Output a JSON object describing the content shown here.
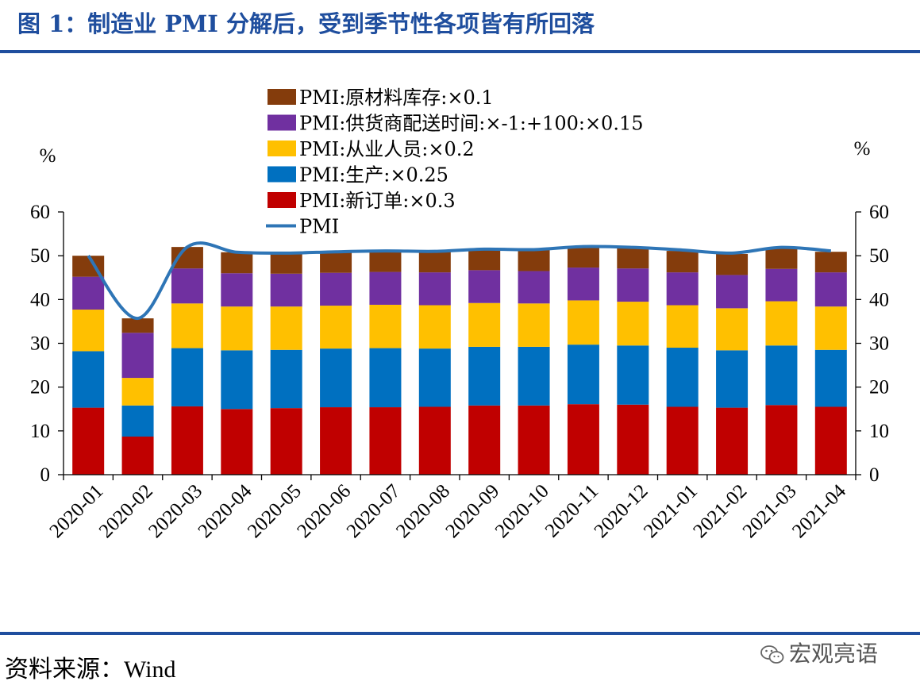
{
  "title": "图 1：制造业 PMI 分解后，受到季节性各项皆有所回落",
  "source": "资料来源：Wind",
  "watermark": "宏观亮语",
  "watermark_icon": "wechat-icon",
  "colors": {
    "header_blue": "#1f4e9e",
    "inventory": "#843c0c",
    "delivery": "#7030a0",
    "employment": "#ffc000",
    "production": "#0070c0",
    "new_orders": "#c00000",
    "pmi_line": "#2e75b6"
  },
  "chart_data": {
    "type": "bar",
    "stacked": true,
    "y_left_unit": "%",
    "y_right_unit": "%",
    "ylim": [
      0,
      60
    ],
    "yticks": [
      0,
      10,
      20,
      30,
      40,
      50,
      60
    ],
    "categories": [
      "2020-01",
      "2020-02",
      "2020-03",
      "2020-04",
      "2020-05",
      "2020-06",
      "2020-07",
      "2020-08",
      "2020-09",
      "2020-10",
      "2020-11",
      "2020-12",
      "2021-01",
      "2021-02",
      "2021-03",
      "2021-04"
    ],
    "series": [
      {
        "name": "PMI:新订单:×0.3",
        "color": "#c00000",
        "values": [
          15.3,
          8.7,
          15.6,
          15.0,
          15.2,
          15.4,
          15.4,
          15.5,
          15.8,
          15.8,
          16.1,
          16.0,
          15.5,
          15.3,
          15.9,
          15.5
        ]
      },
      {
        "name": "PMI:生产:×0.25",
        "color": "#0070c0",
        "values": [
          12.9,
          7.1,
          13.3,
          13.4,
          13.3,
          13.4,
          13.5,
          13.3,
          13.4,
          13.4,
          13.6,
          13.5,
          13.5,
          13.1,
          13.6,
          13.0
        ]
      },
      {
        "name": "PMI:从业人员:×0.2",
        "color": "#ffc000",
        "values": [
          9.5,
          6.3,
          10.2,
          10.0,
          9.9,
          9.8,
          9.9,
          9.9,
          10.0,
          9.9,
          10.1,
          10.0,
          9.7,
          9.6,
          10.1,
          9.9
        ]
      },
      {
        "name": "PMI:供货商配送时间:×-1:+100:×0.15",
        "color": "#7030a0",
        "values": [
          7.5,
          10.3,
          8.0,
          7.6,
          7.5,
          7.5,
          7.5,
          7.5,
          7.5,
          7.4,
          7.5,
          7.6,
          7.5,
          7.6,
          7.4,
          7.8
        ]
      },
      {
        "name": "PMI:原材料库存:×0.1",
        "color": "#843c0c",
        "values": [
          4.8,
          3.3,
          4.9,
          4.8,
          4.7,
          4.8,
          4.8,
          4.8,
          4.8,
          4.8,
          4.9,
          4.8,
          4.9,
          4.8,
          4.8,
          4.7
        ]
      }
    ],
    "line": {
      "name": "PMI",
      "color": "#2e75b6",
      "values": [
        50.0,
        35.7,
        52.0,
        50.8,
        50.6,
        50.9,
        51.1,
        51.0,
        51.5,
        51.4,
        52.1,
        51.9,
        51.3,
        50.6,
        51.9,
        51.1
      ]
    },
    "legend_order": [
      "PMI:原材料库存:×0.1",
      "PMI:供货商配送时间:×-1:+100:×0.15",
      "PMI:从业人员:×0.2",
      "PMI:生产:×0.25",
      "PMI:新订单:×0.3",
      "PMI"
    ],
    "legend_position": "top-center",
    "grid": false
  }
}
